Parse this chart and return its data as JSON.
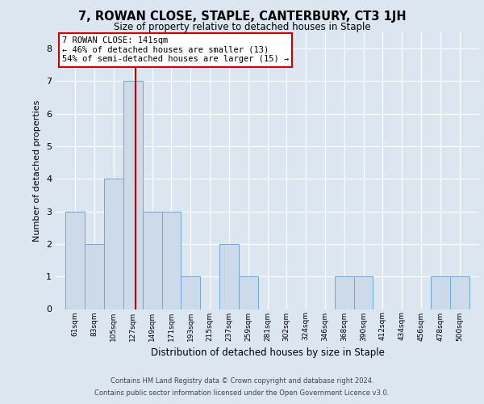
{
  "title": "7, ROWAN CLOSE, STAPLE, CANTERBURY, CT3 1JH",
  "subtitle": "Size of property relative to detached houses in Staple",
  "xlabel": "Distribution of detached houses by size in Staple",
  "ylabel": "Number of detached properties",
  "categories": [
    "61sqm",
    "83sqm",
    "105sqm",
    "127sqm",
    "149sqm",
    "171sqm",
    "193sqm",
    "215sqm",
    "237sqm",
    "259sqm",
    "281sqm",
    "302sqm",
    "324sqm",
    "346sqm",
    "368sqm",
    "390sqm",
    "412sqm",
    "434sqm",
    "456sqm",
    "478sqm",
    "500sqm"
  ],
  "values": [
    3,
    2,
    4,
    7,
    3,
    3,
    1,
    0,
    2,
    1,
    0,
    0,
    0,
    0,
    1,
    1,
    0,
    0,
    0,
    1,
    1
  ],
  "bar_color": "#ccdaea",
  "bar_edge_color": "#6aaad4",
  "background_color": "#dce6f1",
  "plot_background": "#dce6f1",
  "grid_color": "#ffffff",
  "vline_color": "#cc0000",
  "annotation_text": "7 ROWAN CLOSE: 141sqm\n← 46% of detached houses are smaller (13)\n54% of semi-detached houses are larger (15) →",
  "annotation_box_color": "#cc0000",
  "ylim": [
    0,
    8.5
  ],
  "yticks": [
    0,
    1,
    2,
    3,
    4,
    5,
    6,
    7,
    8
  ],
  "bin_width": 22,
  "footer_line1": "Contains HM Land Registry data © Crown copyright and database right 2024.",
  "footer_line2": "Contains public sector information licensed under the Open Government Licence v3.0."
}
